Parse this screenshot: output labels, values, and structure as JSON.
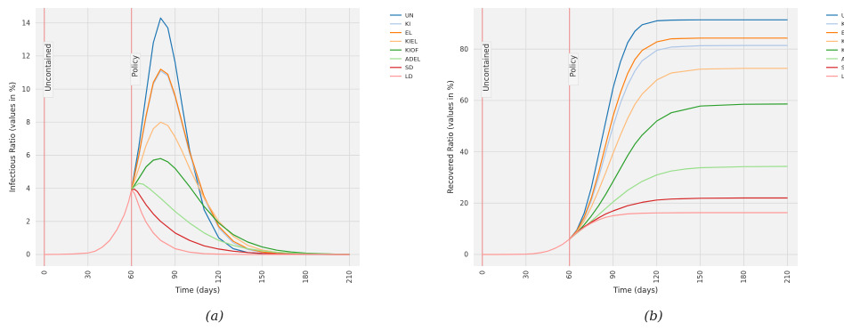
{
  "colors": {
    "UN": "#1f77b4",
    "KI": "#aec7e8",
    "EL": "#ff7f0e",
    "KIEL": "#ffbb78",
    "KIOF": "#2ca02c",
    "ADEL": "#98df8a",
    "SD": "#d62728",
    "LD": "#ff9896",
    "marker_line": "#f08080",
    "plot_bg": "#f2f2f2",
    "grid": "#d9d9d9"
  },
  "chart_data": [
    {
      "type": "line",
      "caption": "(a)",
      "xlabel": "Time (days)",
      "ylabel": "Infectious Ratio (values in %)",
      "xlim": [
        -6,
        217
      ],
      "ylim": [
        -0.7,
        14.9
      ],
      "xticks": [
        0,
        30,
        60,
        90,
        120,
        150,
        180,
        210
      ],
      "yticks": [
        0,
        2,
        4,
        6,
        8,
        10,
        12,
        14
      ],
      "grid": true,
      "legend_position": "outside-right",
      "vlines": [
        {
          "x": 0,
          "label": "Uncontained"
        },
        {
          "x": 60,
          "label": "Policy"
        }
      ],
      "baseline": {
        "x": [
          0,
          10,
          20,
          30,
          35,
          40,
          45,
          50,
          55,
          58,
          60
        ],
        "y": [
          0,
          0.01,
          0.03,
          0.09,
          0.2,
          0.45,
          0.85,
          1.5,
          2.4,
          3.2,
          3.9
        ]
      },
      "series": [
        {
          "name": "UN",
          "x": [
            60,
            65,
            70,
            75,
            80,
            85,
            90,
            95,
            100,
            110,
            120,
            130,
            140,
            150,
            160,
            180,
            200,
            210
          ],
          "y": [
            3.9,
            6.5,
            9.7,
            12.8,
            14.3,
            13.7,
            11.6,
            8.9,
            6.3,
            2.7,
            1.0,
            0.35,
            0.12,
            0.05,
            0.02,
            0.0,
            0.0,
            0.0
          ]
        },
        {
          "name": "KI",
          "x": [
            60,
            65,
            70,
            75,
            80,
            85,
            90,
            95,
            100,
            110,
            120,
            130,
            140,
            150,
            160,
            180,
            200,
            210
          ],
          "y": [
            3.9,
            5.9,
            8.3,
            10.3,
            11.1,
            10.8,
            9.5,
            7.8,
            6.1,
            3.4,
            1.6,
            0.7,
            0.3,
            0.13,
            0.05,
            0.01,
            0.0,
            0.0
          ]
        },
        {
          "name": "EL",
          "x": [
            60,
            65,
            70,
            75,
            80,
            85,
            90,
            95,
            100,
            110,
            120,
            130,
            140,
            150,
            160,
            180,
            200,
            210
          ],
          "y": [
            3.9,
            6.0,
            8.4,
            10.4,
            11.2,
            10.9,
            9.6,
            7.9,
            6.2,
            3.5,
            1.7,
            0.8,
            0.35,
            0.15,
            0.06,
            0.01,
            0.0,
            0.0
          ]
        },
        {
          "name": "KIEL",
          "x": [
            60,
            65,
            70,
            75,
            80,
            85,
            90,
            95,
            100,
            110,
            120,
            130,
            140,
            150,
            160,
            180,
            200,
            210
          ],
          "y": [
            3.9,
            5.2,
            6.6,
            7.6,
            8.0,
            7.8,
            7.1,
            6.2,
            5.2,
            3.4,
            2.0,
            1.1,
            0.55,
            0.27,
            0.13,
            0.03,
            0.01,
            0.0
          ]
        },
        {
          "name": "KIOF",
          "x": [
            60,
            65,
            70,
            75,
            80,
            85,
            90,
            100,
            110,
            120,
            130,
            140,
            150,
            160,
            170,
            180,
            200,
            210
          ],
          "y": [
            3.9,
            4.6,
            5.3,
            5.7,
            5.8,
            5.6,
            5.2,
            4.1,
            2.9,
            1.9,
            1.2,
            0.75,
            0.45,
            0.26,
            0.15,
            0.08,
            0.02,
            0.01
          ]
        },
        {
          "name": "ADEL",
          "x": [
            60,
            62,
            65,
            68,
            72,
            80,
            90,
            100,
            110,
            120,
            130,
            140,
            150,
            160,
            170,
            180,
            200,
            210
          ],
          "y": [
            3.9,
            4.1,
            4.3,
            4.25,
            4.0,
            3.4,
            2.6,
            1.9,
            1.3,
            0.85,
            0.55,
            0.35,
            0.22,
            0.13,
            0.08,
            0.05,
            0.02,
            0.01
          ]
        },
        {
          "name": "SD",
          "x": [
            60,
            62,
            64,
            67,
            70,
            75,
            80,
            90,
            100,
            110,
            120,
            130,
            140,
            150,
            160,
            180,
            200,
            210
          ],
          "y": [
            3.9,
            3.95,
            3.8,
            3.4,
            3.0,
            2.45,
            2.0,
            1.3,
            0.85,
            0.52,
            0.33,
            0.2,
            0.12,
            0.07,
            0.04,
            0.01,
            0.0,
            0.0
          ]
        },
        {
          "name": "LD",
          "x": [
            60,
            62,
            64,
            67,
            70,
            75,
            80,
            90,
            100,
            110,
            120,
            130,
            140,
            150,
            160,
            180,
            200,
            210
          ],
          "y": [
            3.9,
            3.7,
            3.2,
            2.5,
            1.95,
            1.3,
            0.85,
            0.35,
            0.14,
            0.05,
            0.02,
            0.01,
            0.0,
            0.0,
            0.0,
            0.0,
            0.0,
            0.0
          ]
        }
      ]
    },
    {
      "type": "line",
      "caption": "(b)",
      "xlabel": "Time (days)",
      "ylabel": "Recovered Ratio (values in %)",
      "xlim": [
        -6,
        217
      ],
      "ylim": [
        -4.5,
        96
      ],
      "xticks": [
        0,
        30,
        60,
        90,
        120,
        150,
        180,
        210
      ],
      "yticks": [
        0,
        20,
        40,
        60,
        80
      ],
      "grid": true,
      "legend_position": "outside-right (clipped)",
      "vlines": [
        {
          "x": 0,
          "label": "Uncontained"
        },
        {
          "x": 60,
          "label": "Policy"
        }
      ],
      "baseline": {
        "x": [
          0,
          10,
          20,
          30,
          35,
          40,
          45,
          50,
          55,
          60
        ],
        "y": [
          0,
          0.02,
          0.05,
          0.15,
          0.3,
          0.7,
          1.3,
          2.4,
          3.9,
          6.0
        ]
      },
      "series": [
        {
          "name": "UN",
          "x": [
            60,
            65,
            70,
            75,
            80,
            85,
            90,
            95,
            100,
            105,
            110,
            120,
            130,
            150,
            180,
            210
          ],
          "y": [
            6.0,
            9.5,
            16,
            26,
            39,
            52,
            65,
            75,
            82.5,
            87,
            89.5,
            91,
            91.3,
            91.4,
            91.4,
            91.4
          ]
        },
        {
          "name": "KI",
          "x": [
            60,
            65,
            70,
            75,
            80,
            85,
            90,
            95,
            100,
            105,
            110,
            120,
            130,
            150,
            180,
            210
          ],
          "y": [
            6.0,
            9.0,
            14,
            21,
            30,
            40,
            50,
            59,
            66,
            71.5,
            75.5,
            79.5,
            80.8,
            81.3,
            81.4,
            81.4
          ]
        },
        {
          "name": "EL",
          "x": [
            60,
            65,
            70,
            75,
            80,
            85,
            90,
            95,
            100,
            105,
            110,
            120,
            130,
            150,
            180,
            210
          ],
          "y": [
            6.0,
            9.2,
            14.5,
            22,
            32,
            43,
            54,
            63,
            70.5,
            76,
            79.5,
            82.8,
            84,
            84.3,
            84.3,
            84.3
          ]
        },
        {
          "name": "KIEL",
          "x": [
            60,
            65,
            70,
            75,
            80,
            85,
            90,
            95,
            100,
            105,
            110,
            120,
            130,
            150,
            180,
            210
          ],
          "y": [
            6.0,
            8.8,
            13,
            18.5,
            25,
            32,
            39.5,
            46.5,
            53,
            58.5,
            62.5,
            68,
            70.7,
            72.2,
            72.5,
            72.5
          ]
        },
        {
          "name": "KIOF",
          "x": [
            60,
            65,
            70,
            75,
            80,
            85,
            90,
            95,
            100,
            105,
            110,
            120,
            130,
            150,
            180,
            210
          ],
          "y": [
            6.0,
            8.5,
            11.5,
            15,
            19,
            23.5,
            28.5,
            33.5,
            38.5,
            43,
            46.5,
            52,
            55.2,
            57.8,
            58.5,
            58.6
          ]
        },
        {
          "name": "ADEL",
          "x": [
            60,
            65,
            70,
            75,
            80,
            85,
            90,
            100,
            110,
            120,
            130,
            140,
            150,
            180,
            210
          ],
          "y": [
            6.0,
            8.3,
            10.5,
            13,
            15.5,
            18,
            20.5,
            25,
            28.5,
            31,
            32.5,
            33.3,
            33.8,
            34.2,
            34.3
          ]
        },
        {
          "name": "SD",
          "x": [
            60,
            65,
            70,
            75,
            80,
            85,
            90,
            100,
            110,
            120,
            130,
            150,
            180,
            210
          ],
          "y": [
            6.0,
            8.6,
            10.8,
            12.6,
            14.3,
            15.8,
            17.0,
            19.0,
            20.3,
            21.2,
            21.6,
            21.9,
            22.0,
            22.0
          ]
        },
        {
          "name": "LD",
          "x": [
            60,
            65,
            70,
            75,
            80,
            85,
            90,
            100,
            110,
            120,
            150,
            180,
            210
          ],
          "y": [
            6.0,
            8.5,
            10.5,
            12.2,
            13.5,
            14.5,
            15.1,
            15.8,
            16.1,
            16.2,
            16.3,
            16.3,
            16.3
          ]
        }
      ]
    }
  ]
}
